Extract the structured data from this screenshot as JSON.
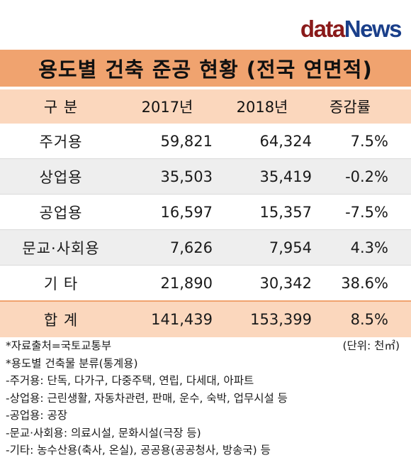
{
  "logo": {
    "part1": "data",
    "part2": "News"
  },
  "title": "용도별 건축 준공 현황 (전국 연면적)",
  "header": [
    "구  분",
    "2017년",
    "2018년",
    "증감률"
  ],
  "rows": [
    {
      "category": "주거용",
      "y2017": "59,821",
      "y2018": "64,324",
      "change": "7.5%"
    },
    {
      "category": "상업용",
      "y2017": "35,503",
      "y2018": "35,419",
      "change": "-0.2%"
    },
    {
      "category": "공업용",
      "y2017": "16,597",
      "y2018": "15,357",
      "change": "-7.5%"
    },
    {
      "category": "문교·사회용",
      "y2017": "7,626",
      "y2018": "7,954",
      "change": "4.3%"
    },
    {
      "category": "기  타",
      "y2017": "21,890",
      "y2018": "30,342",
      "change": "38.6%"
    }
  ],
  "total": {
    "category": "합  계",
    "y2017": "141,439",
    "y2018": "153,399",
    "change": "8.5%"
  },
  "notes": {
    "source": "*자료출처=국토교통부",
    "unit": "(단위: 천㎡)",
    "classification_title": "*용도별 건축물 분류(통계용)",
    "items": [
      "-주거용: 단독, 다가구, 다중주택, 연립, 다세대, 아파트",
      "-상업용: 근린생활, 자동차관련, 판매, 운수, 숙박, 업무시설 등",
      "-공업용: 공장",
      "-문교·사회용: 의료시설, 문화시설(극장 등)",
      "-기타: 농수산용(축사, 온실), 공공용(공공청사, 방송국) 등"
    ]
  },
  "colors": {
    "title_bg": "#f0a36f",
    "header_bg": "#fbd7bd",
    "alt_row": "#eeeeee"
  }
}
